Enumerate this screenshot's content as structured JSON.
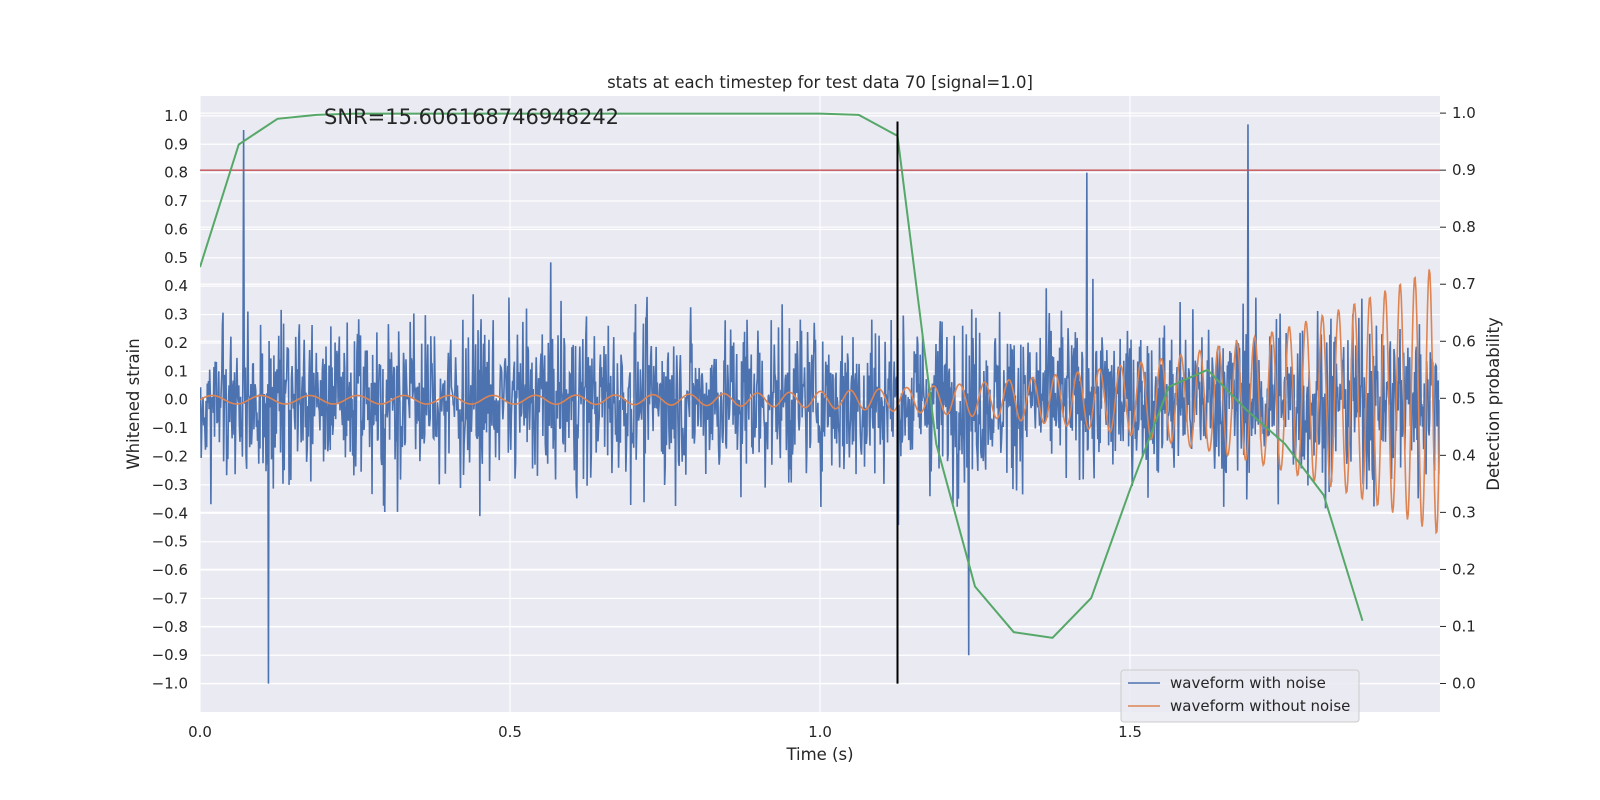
{
  "chart_data": {
    "type": "line",
    "title": "stats at each timestep for test data 70 [signal=1.0]",
    "annotation": "SNR=15.606168746948242",
    "xlabel": "Time (s)",
    "ylabel_left": "Whitened strain",
    "ylabel_right": "Detection probability",
    "xlim": [
      0.0,
      2.0
    ],
    "ylim_left": [
      -1.1,
      1.07
    ],
    "ylim_right": [
      -0.05,
      1.03
    ],
    "x_ticks": [
      "0.0",
      "0.5",
      "1.0",
      "1.5"
    ],
    "y_ticks_left": [
      "−1.0",
      "−0.9",
      "−0.8",
      "−0.7",
      "−0.6",
      "−0.5",
      "−0.4",
      "−0.3",
      "−0.2",
      "−0.1",
      "0.0",
      "0.1",
      "0.2",
      "0.3",
      "0.4",
      "0.5",
      "0.6",
      "0.7",
      "0.8",
      "0.9",
      "1.0"
    ],
    "y_ticks_right": [
      "0.0",
      "0.1",
      "0.2",
      "0.3",
      "0.4",
      "0.5",
      "0.6",
      "0.7",
      "0.8",
      "0.9",
      "1.0"
    ],
    "grid": true,
    "legend_position": "lower-right",
    "series": [
      {
        "name": "waveform with noise",
        "axis": "left",
        "color": "#4c72b0",
        "description": "noisy whitened strain, amplitude mostly within ±0.5 with spikes up to about ±1.0",
        "notable_points": [
          {
            "x": 0.07,
            "y": 0.95
          },
          {
            "x": 0.11,
            "y": -1.0
          },
          {
            "x": 1.24,
            "y": -0.9
          },
          {
            "x": 1.43,
            "y": 0.8
          },
          {
            "x": 1.69,
            "y": 0.97
          }
        ]
      },
      {
        "name": "waveform without noise",
        "axis": "left",
        "color": "#dd8452",
        "description": "chirp signal with growing amplitude and frequency",
        "amplitude_start": 0.015,
        "amplitude_end": 0.48,
        "cycles": 46
      },
      {
        "axis": "right",
        "color": "#55a868",
        "x": [
          0.0,
          0.0625,
          0.125,
          0.1875,
          0.25,
          1.0,
          1.0625,
          1.125,
          1.1875,
          1.25,
          1.3125,
          1.375,
          1.4375,
          1.5,
          1.5625,
          1.625,
          1.6875,
          1.75,
          1.8125,
          1.875
        ],
        "values": [
          0.73,
          0.945,
          0.99,
          0.997,
          0.999,
          0.999,
          0.997,
          0.96,
          0.42,
          0.17,
          0.09,
          0.08,
          0.15,
          0.34,
          0.52,
          0.55,
          0.48,
          0.42,
          0.33,
          0.11
        ]
      },
      {
        "axis": "right",
        "color": "#c44e52",
        "type": "hline",
        "y": 0.9
      },
      {
        "axis": "left",
        "color": "#000000",
        "type": "vline",
        "x": 1.125,
        "y_range": [
          -1.0,
          0.98
        ]
      }
    ]
  }
}
